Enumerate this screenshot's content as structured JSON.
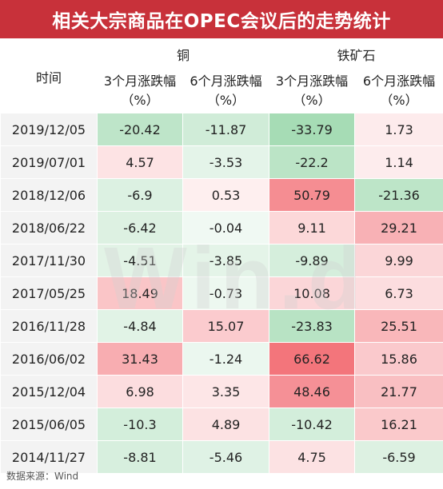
{
  "title": "相关大宗商品在OPEC会议后的走势统计",
  "table": {
    "time_header": "时间",
    "groups": [
      "铜",
      "铁矿石"
    ],
    "subheaders": [
      [
        "3个月涨跌幅",
        "（%）"
      ],
      [
        "6个月涨跌幅",
        "（%）"
      ],
      [
        "3个月涨跌幅",
        "（%）"
      ],
      [
        "6个月涨跌幅",
        "（%）"
      ]
    ],
    "rows": [
      {
        "date": "2019/12/05",
        "values": [
          "-20.42",
          "-11.87",
          "-33.79",
          "1.73"
        ]
      },
      {
        "date": "2019/07/01",
        "values": [
          "4.57",
          "-3.53",
          "-22.2",
          "1.14"
        ]
      },
      {
        "date": "2018/12/06",
        "values": [
          "-6.9",
          "0.53",
          "50.79",
          "-21.36"
        ]
      },
      {
        "date": "2018/06/22",
        "values": [
          "-6.42",
          "-0.04",
          "9.11",
          "29.21"
        ]
      },
      {
        "date": "2017/11/30",
        "values": [
          "-4.51",
          "-3.85",
          "-9.89",
          "9.99"
        ]
      },
      {
        "date": "2017/05/25",
        "values": [
          "18.49",
          "-0.73",
          "10.08",
          "6.73"
        ]
      },
      {
        "date": "2016/11/28",
        "values": [
          "-4.84",
          "15.07",
          "-23.83",
          "25.51"
        ]
      },
      {
        "date": "2016/06/02",
        "values": [
          "31.43",
          "-1.24",
          "66.62",
          "15.86"
        ]
      },
      {
        "date": "2015/12/04",
        "values": [
          "6.98",
          "3.35",
          "48.46",
          "21.77"
        ]
      },
      {
        "date": "2015/06/05",
        "values": [
          "-10.3",
          "4.89",
          "-10.42",
          "16.21"
        ]
      },
      {
        "date": "2014/11/27",
        "values": [
          "-8.81",
          "-5.46",
          "4.75",
          "-6.59"
        ]
      }
    ]
  },
  "colors": {
    "title_bg": "#c8313a",
    "positive": "#f0525a",
    "negative": "#4cb86a",
    "date_bg": "#f3f3f3"
  },
  "watermark": "Win.d",
  "source": "数据来源：Wind"
}
